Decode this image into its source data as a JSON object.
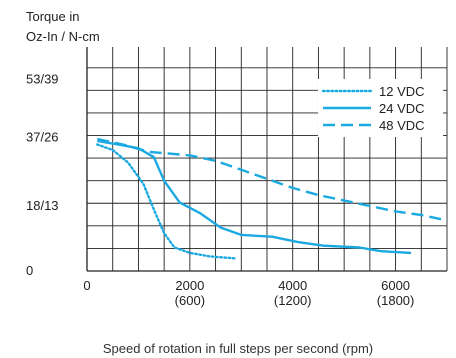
{
  "chart_data": {
    "type": "line",
    "ylabel_lines": [
      "Torque in",
      "Oz-In / N-cm"
    ],
    "xlabel": "Speed of rotation in full steps per second (rpm)",
    "y_ticks": [
      {
        "value": 0,
        "label": "0"
      },
      {
        "value": 18,
        "label": "18/13"
      },
      {
        "value": 37,
        "label": "37/26"
      },
      {
        "value": 53,
        "label": "53/39"
      }
    ],
    "x_ticks": [
      {
        "value": 0,
        "label": "0",
        "sub": ""
      },
      {
        "value": 2000,
        "label": "2000",
        "sub": "(600)"
      },
      {
        "value": 4000,
        "label": "4000",
        "sub": "(1200)"
      },
      {
        "value": 6000,
        "label": "6000",
        "sub": "(1800)"
      }
    ],
    "xlim": [
      0,
      7000
    ],
    "ylim": [
      0,
      62
    ],
    "grid": true,
    "grid_x_step": 500,
    "grid_y_step": 6.25,
    "legend_position": "top-right",
    "colors": {
      "series": "#1aa9e0",
      "grid": "#222222",
      "text": "#222222"
    },
    "series": [
      {
        "name": "12 VDC",
        "dash": "dotted",
        "points": [
          [
            200,
            35
          ],
          [
            500,
            33.5
          ],
          [
            800,
            30
          ],
          [
            1100,
            24
          ],
          [
            1300,
            17
          ],
          [
            1500,
            10.5
          ],
          [
            1700,
            6.5
          ],
          [
            2000,
            5
          ],
          [
            2400,
            4
          ],
          [
            2900,
            3.5
          ]
        ]
      },
      {
        "name": "24 VDC",
        "dash": "solid",
        "points": [
          [
            200,
            36
          ],
          [
            600,
            35
          ],
          [
            1000,
            34
          ],
          [
            1300,
            31.5
          ],
          [
            1500,
            25
          ],
          [
            1800,
            19
          ],
          [
            2200,
            16
          ],
          [
            2600,
            12
          ],
          [
            3000,
            10
          ],
          [
            3600,
            9.5
          ],
          [
            4100,
            8
          ],
          [
            4600,
            7
          ],
          [
            5300,
            6.5
          ],
          [
            5700,
            5.5
          ],
          [
            6300,
            5
          ]
        ]
      },
      {
        "name": "48 VDC",
        "dash": "dashed",
        "points": [
          [
            200,
            36.5
          ],
          [
            700,
            35
          ],
          [
            1200,
            33
          ],
          [
            1600,
            32.5
          ],
          [
            2000,
            32
          ],
          [
            2500,
            30.5
          ],
          [
            3000,
            28
          ],
          [
            3500,
            25.5
          ],
          [
            4000,
            23
          ],
          [
            4500,
            21
          ],
          [
            5000,
            19.5
          ],
          [
            5500,
            18
          ],
          [
            6000,
            16.5
          ],
          [
            6500,
            15.5
          ],
          [
            7000,
            14
          ]
        ]
      }
    ]
  }
}
